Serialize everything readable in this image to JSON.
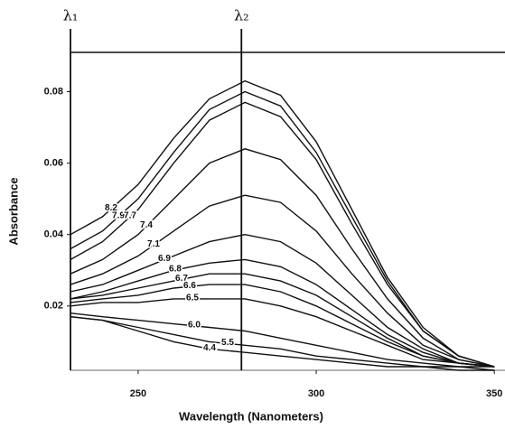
{
  "chart_data": {
    "type": "line",
    "x_label": "Wavelength (Nanometers)",
    "y_label": "Absorbance",
    "x": [
      231,
      240,
      250,
      260,
      270,
      280,
      290,
      300,
      310,
      320,
      330,
      340,
      350
    ],
    "xlim": [
      231,
      353
    ],
    "xticks": [
      250,
      300,
      350
    ],
    "ylim": [
      0.002,
      0.091
    ],
    "yticks": [
      0.02,
      0.04,
      0.06,
      0.08
    ],
    "color": "#111111",
    "annotations": [
      {
        "text": "λ₁",
        "x": 231
      },
      {
        "text": "λ₂",
        "x": 279
      }
    ],
    "series": [
      {
        "name": "8.2",
        "values": [
          0.04,
          0.045,
          0.054,
          0.067,
          0.078,
          0.083,
          0.079,
          0.066,
          0.047,
          0.028,
          0.014,
          0.006,
          0.003
        ]
      },
      {
        "name": "7.9",
        "values": [
          0.036,
          0.041,
          0.05,
          0.063,
          0.075,
          0.08,
          0.076,
          0.063,
          0.045,
          0.027,
          0.013,
          0.006,
          0.003
        ]
      },
      {
        "name": "7.7",
        "values": [
          0.033,
          0.038,
          0.047,
          0.06,
          0.072,
          0.077,
          0.073,
          0.061,
          0.043,
          0.026,
          0.013,
          0.006,
          0.003
        ]
      },
      {
        "name": "7.4",
        "values": [
          0.029,
          0.033,
          0.04,
          0.05,
          0.06,
          0.064,
          0.061,
          0.051,
          0.036,
          0.022,
          0.011,
          0.005,
          0.003
        ]
      },
      {
        "name": "7.1",
        "values": [
          0.026,
          0.029,
          0.034,
          0.041,
          0.048,
          0.051,
          0.049,
          0.041,
          0.029,
          0.018,
          0.009,
          0.005,
          0.003
        ]
      },
      {
        "name": "6.9",
        "values": [
          0.024,
          0.026,
          0.03,
          0.034,
          0.038,
          0.04,
          0.038,
          0.032,
          0.023,
          0.014,
          0.008,
          0.004,
          0.003
        ]
      },
      {
        "name": "6.8",
        "values": [
          0.022,
          0.024,
          0.027,
          0.03,
          0.032,
          0.033,
          0.031,
          0.026,
          0.019,
          0.012,
          0.007,
          0.004,
          0.003
        ]
      },
      {
        "name": "6.7",
        "values": [
          0.022,
          0.023,
          0.025,
          0.027,
          0.029,
          0.029,
          0.027,
          0.023,
          0.017,
          0.011,
          0.006,
          0.004,
          0.003
        ]
      },
      {
        "name": "6.6",
        "values": [
          0.021,
          0.022,
          0.023,
          0.025,
          0.026,
          0.026,
          0.024,
          0.02,
          0.015,
          0.01,
          0.006,
          0.004,
          0.003
        ]
      },
      {
        "name": "6.5",
        "values": [
          0.02,
          0.021,
          0.021,
          0.022,
          0.022,
          0.022,
          0.02,
          0.017,
          0.013,
          0.009,
          0.005,
          0.004,
          0.003
        ]
      },
      {
        "name": "6.0",
        "values": [
          0.018,
          0.017,
          0.016,
          0.015,
          0.014,
          0.013,
          0.011,
          0.009,
          0.007,
          0.005,
          0.004,
          0.003,
          0.003
        ]
      },
      {
        "name": "5.5",
        "values": [
          0.017,
          0.016,
          0.014,
          0.012,
          0.01,
          0.009,
          0.008,
          0.006,
          0.005,
          0.004,
          0.003,
          0.003,
          0.002
        ]
      },
      {
        "name": "4.4",
        "values": [
          0.017,
          0.016,
          0.013,
          0.01,
          0.008,
          0.007,
          0.006,
          0.005,
          0.004,
          0.003,
          0.003,
          0.002,
          0.002
        ]
      }
    ]
  }
}
